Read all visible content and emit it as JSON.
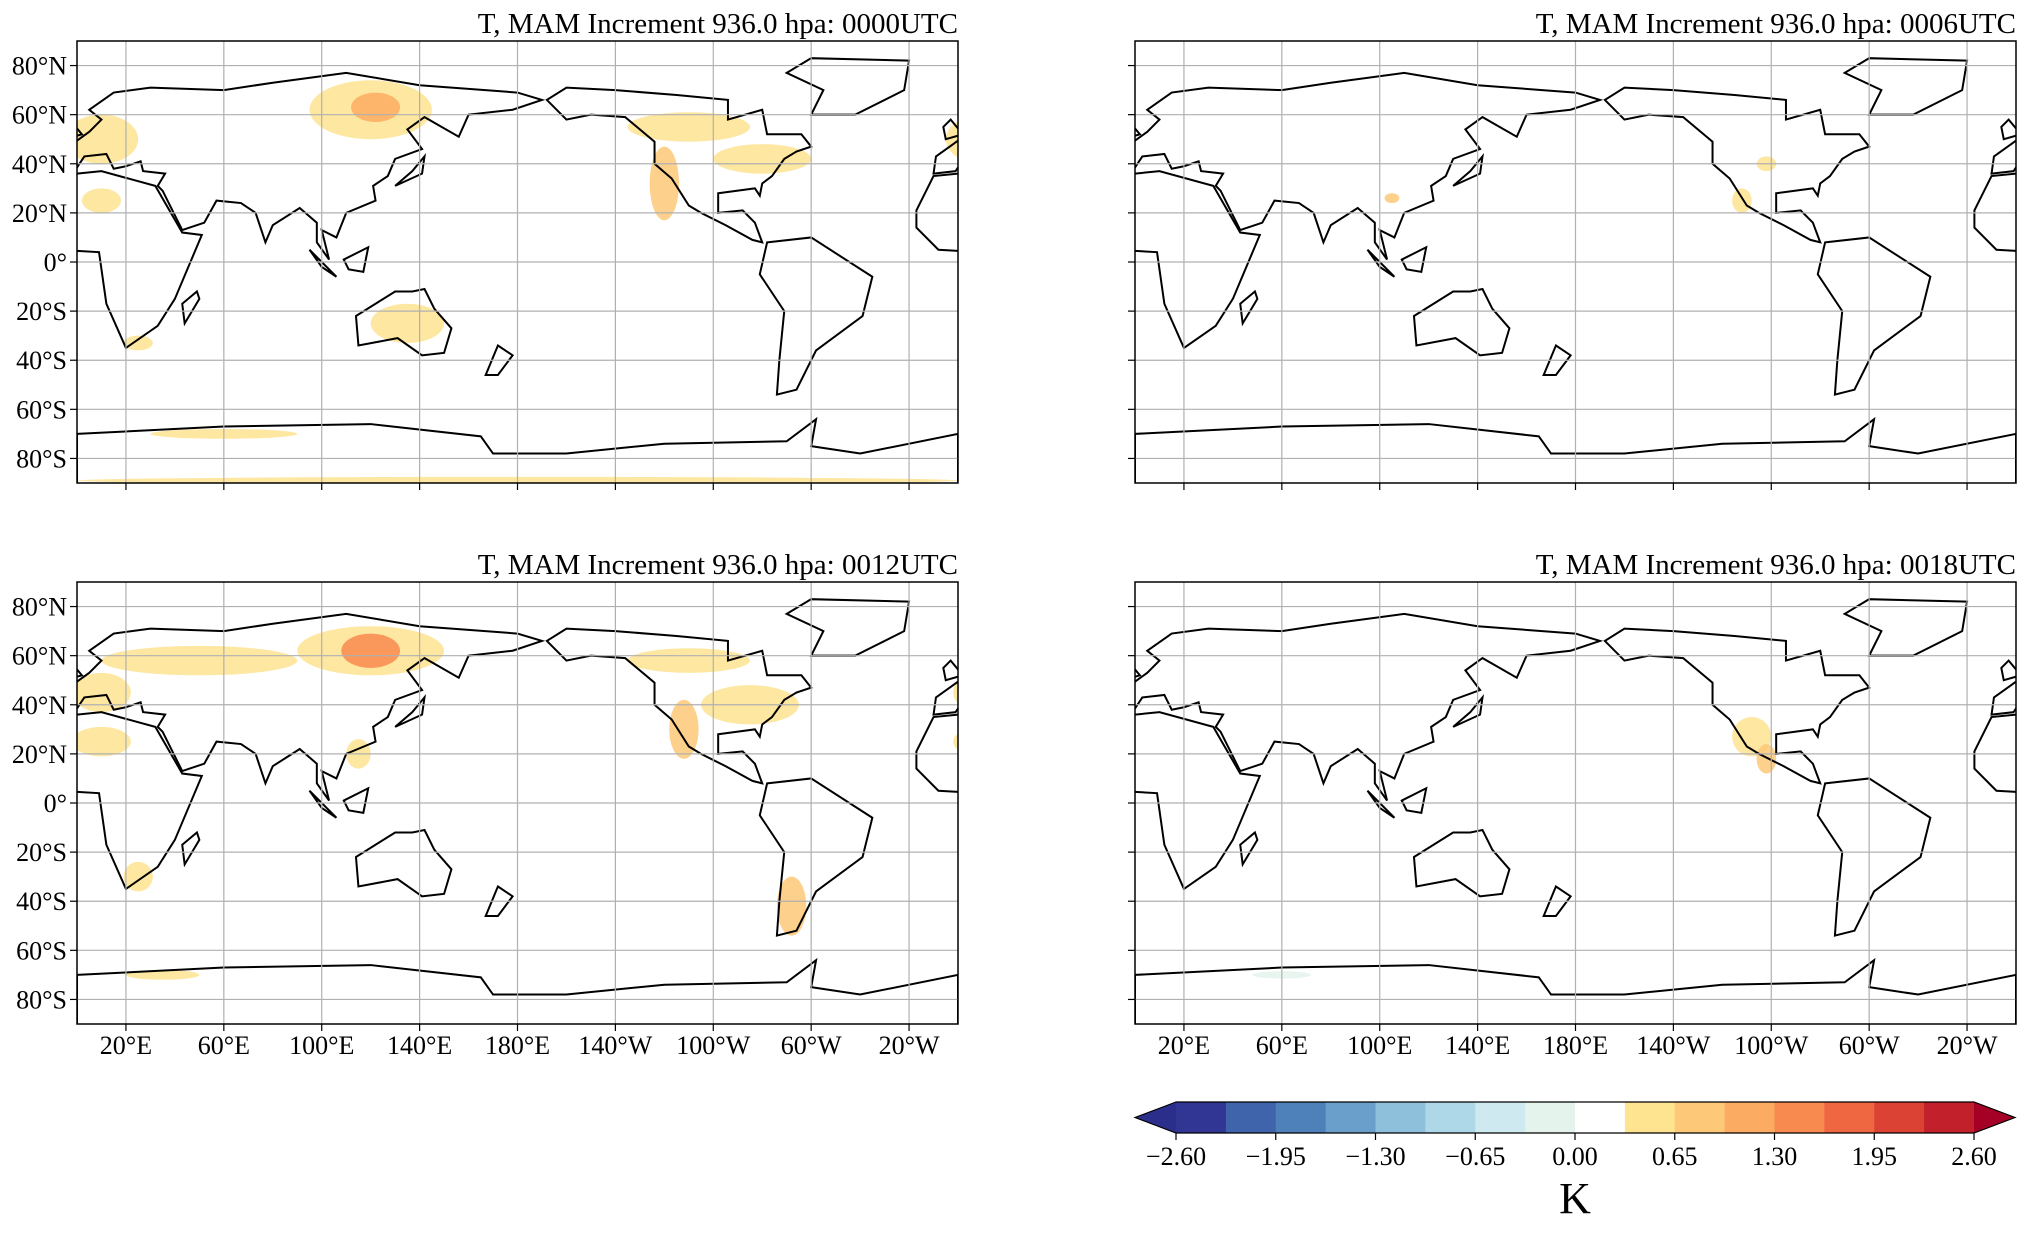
{
  "panels": [
    {
      "title": "T, MAM Increment 936.0 hpa:  0000UTC"
    },
    {
      "title": "T, MAM Increment 936.0 hpa:  0006UTC"
    },
    {
      "title": "T, MAM Increment 936.0 hpa:  0012UTC"
    },
    {
      "title": "T, MAM Increment 936.0 hpa:  0018UTC"
    }
  ],
  "lon_range": [
    0,
    360
  ],
  "lat_range": [
    -90,
    90
  ],
  "lon_ticks": [
    {
      "value": 20,
      "label": "20°E"
    },
    {
      "value": 60,
      "label": "60°E"
    },
    {
      "value": 100,
      "label": "100°E"
    },
    {
      "value": 140,
      "label": "140°E"
    },
    {
      "value": 180,
      "label": "180°E"
    },
    {
      "value": 220,
      "label": "140°W"
    },
    {
      "value": 260,
      "label": "100°W"
    },
    {
      "value": 300,
      "label": "60°W"
    },
    {
      "value": 340,
      "label": "20°W"
    }
  ],
  "lat_ticks": [
    {
      "value": 80,
      "label": "80°N"
    },
    {
      "value": 60,
      "label": "60°N"
    },
    {
      "value": 40,
      "label": "40°N"
    },
    {
      "value": 20,
      "label": "20°N"
    },
    {
      "value": 0,
      "label": "0°"
    },
    {
      "value": -20,
      "label": "20°S"
    },
    {
      "value": -40,
      "label": "40°S"
    },
    {
      "value": -60,
      "label": "60°S"
    },
    {
      "value": -80,
      "label": "80°S"
    }
  ],
  "colorbar": {
    "label": "K",
    "range": [
      -2.6,
      2.6
    ],
    "ticks": [
      {
        "value": -2.6,
        "label": "−2.60"
      },
      {
        "value": -1.95,
        "label": "−1.95"
      },
      {
        "value": -1.3,
        "label": "−1.30"
      },
      {
        "value": -0.65,
        "label": "−0.65"
      },
      {
        "value": 0,
        "label": "0.00"
      },
      {
        "value": 0.65,
        "label": "0.65"
      },
      {
        "value": 1.3,
        "label": "1.30"
      },
      {
        "value": 1.95,
        "label": "1.95"
      },
      {
        "value": 2.6,
        "label": "2.60"
      }
    ],
    "colors": [
      "#313695",
      "#4064ab",
      "#4e80ba",
      "#6a9fcb",
      "#8ec0db",
      "#aed8e8",
      "#cfe9f1",
      "#e4f3ec",
      "#ffffff",
      "#fee391",
      "#fdc877",
      "#fcab62",
      "#f98a4f",
      "#ef6740",
      "#db4233",
      "#c2212c"
    ],
    "under_color": "#2b2f8b",
    "over_color": "#a50026"
  }
}
